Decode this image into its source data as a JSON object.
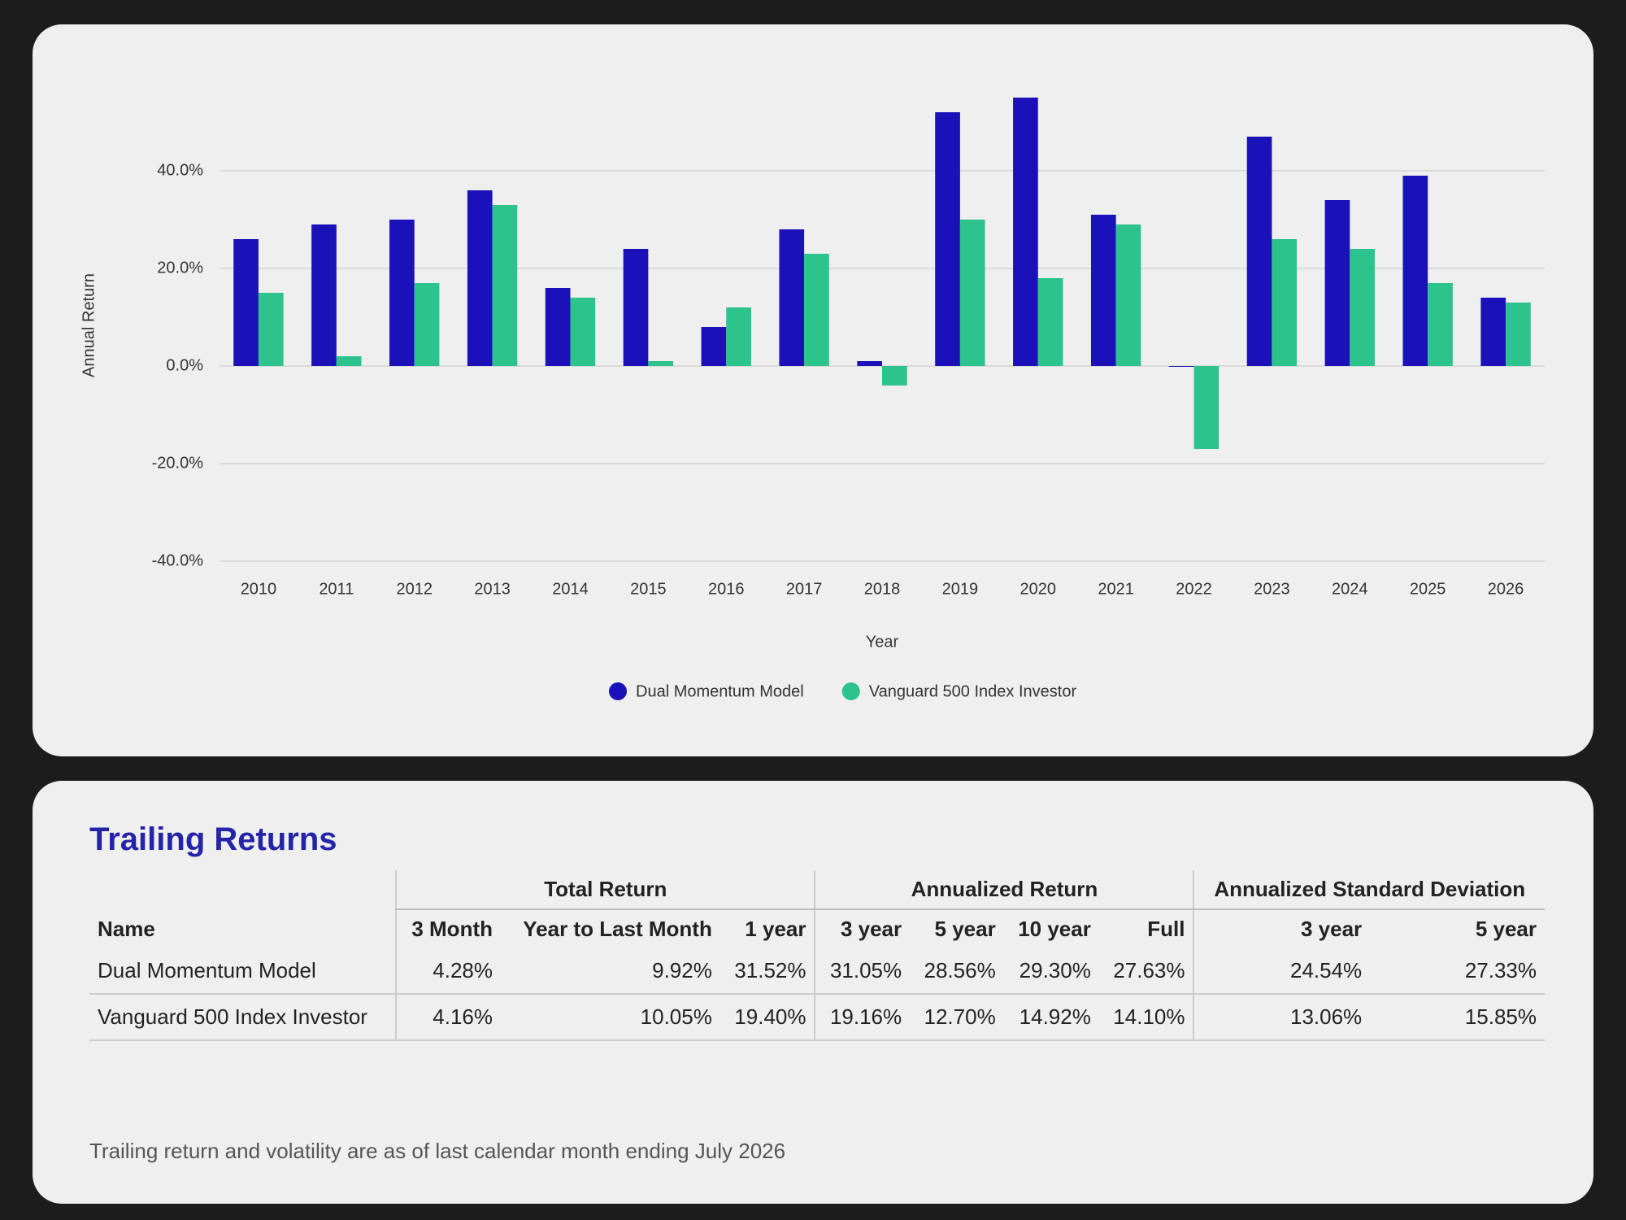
{
  "chart_data": {
    "type": "bar",
    "x_label": "Year",
    "y_label": "Annual Return",
    "categories": [
      "2010",
      "2011",
      "2012",
      "2013",
      "2014",
      "2015",
      "2016",
      "2017",
      "2018",
      "2019",
      "2020",
      "2021",
      "2022",
      "2023",
      "2024",
      "2025",
      "2026"
    ],
    "series": [
      {
        "name": "Dual Momentum Model",
        "color": "#1a12b8",
        "values": [
          26,
          29,
          30,
          36,
          16,
          24,
          8,
          28,
          1,
          52,
          55,
          31,
          0,
          47,
          34,
          39,
          14
        ]
      },
      {
        "name": "Vanguard 500 Index Investor",
        "color": "#2cc48c",
        "values": [
          15,
          2,
          17,
          33,
          14,
          1,
          12,
          23,
          -4,
          30,
          18,
          29,
          -17,
          26,
          24,
          17,
          13
        ]
      }
    ],
    "ylim": [
      -40,
      60
    ],
    "yticks": [
      {
        "value": -40,
        "label": "-40.0%"
      },
      {
        "value": -20,
        "label": "-20.0%"
      },
      {
        "value": 0,
        "label": "0.0%"
      },
      {
        "value": 20,
        "label": "20.0%"
      },
      {
        "value": 40,
        "label": "40.0%"
      }
    ],
    "grid": true,
    "legend": "bottom"
  },
  "table": {
    "title": "Trailing Returns",
    "name_header": "Name",
    "groups": [
      {
        "label": "Total Return",
        "columns": [
          "3 Month",
          "Year to Last Month",
          "1 year"
        ]
      },
      {
        "label": "Annualized Return",
        "columns": [
          "3 year",
          "5 year",
          "10 year",
          "Full"
        ]
      },
      {
        "label": "Annualized Standard Deviation",
        "columns": [
          "3 year",
          "5 year"
        ]
      }
    ],
    "rows": [
      {
        "name": "Dual Momentum Model",
        "values": [
          "4.28%",
          "9.92%",
          "31.52%",
          "31.05%",
          "28.56%",
          "29.30%",
          "27.63%",
          "24.54%",
          "27.33%"
        ]
      },
      {
        "name": "Vanguard 500 Index Investor",
        "values": [
          "4.16%",
          "10.05%",
          "19.40%",
          "19.16%",
          "12.70%",
          "14.92%",
          "14.10%",
          "13.06%",
          "15.85%"
        ]
      }
    ],
    "note": "Trailing return and volatility are as of last calendar month ending July 2026"
  }
}
